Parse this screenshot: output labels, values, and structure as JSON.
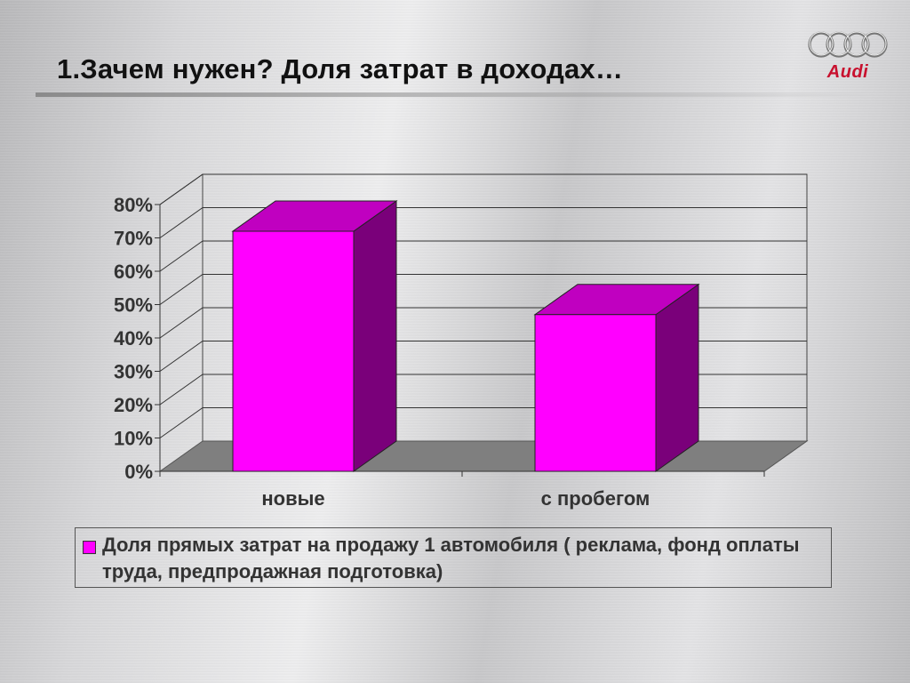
{
  "slide": {
    "title": "1.Зачем нужен? Доля затрат в доходах…",
    "logo_text": "Audi"
  },
  "colors": {
    "bar_front": "#ff00ff",
    "bar_top": "#c000c0",
    "bar_side": "#7a007a",
    "floor": "#7f7f7f",
    "logo_red": "#c8102e"
  },
  "chart_data": {
    "type": "bar",
    "categories": [
      "новые",
      "с пробегом"
    ],
    "series": [
      {
        "name": "Доля прямых затрат на продажу 1 автомобиля ( реклама, фонд оплаты труда, предпродажная подготовка)",
        "values": [
          0.72,
          0.47
        ]
      }
    ],
    "yticks": [
      "0%",
      "10%",
      "20%",
      "30%",
      "40%",
      "50%",
      "60%",
      "70%",
      "80%"
    ],
    "ylim": [
      0,
      0.8
    ],
    "grid": true,
    "three_d": true,
    "legend_position": "bottom"
  }
}
